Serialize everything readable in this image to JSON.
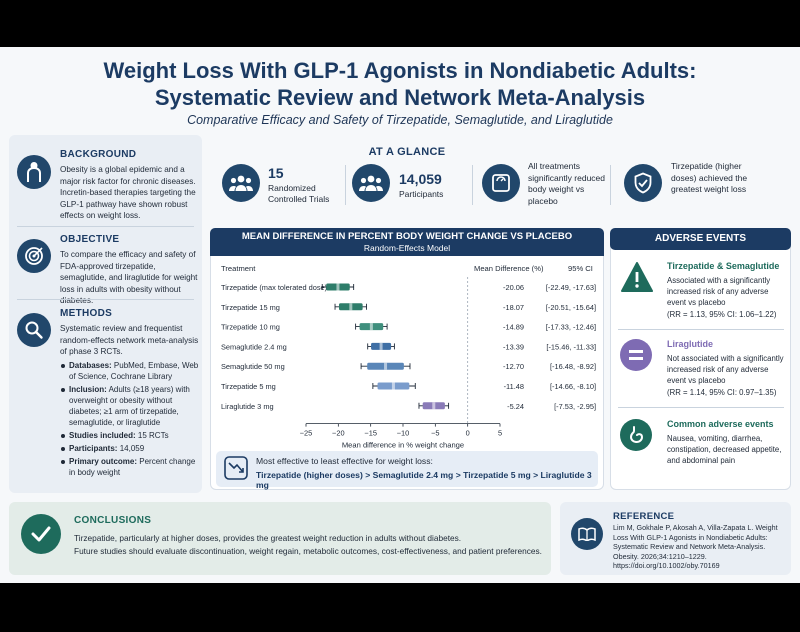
{
  "header": {
    "title_line1": "Weight Loss With GLP-1 Agonists in Nondiabetic Adults:",
    "title_line2": "Systematic Review and Network Meta-Analysis",
    "subtitle": "Comparative Efficacy and Safety of Tirzepatide, Semaglutide, and Liraglutide"
  },
  "background": {
    "heading": "BACKGROUND",
    "text": "Obesity is a global epidemic and a major risk factor for chronic diseases. Incretin-based therapies targeting the GLP-1 pathway have shown robust effects on weight loss."
  },
  "objective": {
    "heading": "OBJECTIVE",
    "text": "To compare the efficacy and safety of FDA-approved tirzepatide, semaglutide, and liraglutide for weight loss in adults with obesity without diabetes."
  },
  "methods": {
    "heading": "METHODS",
    "text": "Systematic review and frequentist random-effects network meta-analysis of phase 3 RCTs.",
    "bullets": [
      {
        "label": "Databases:",
        "text": " PubMed, Embase, Web of Science, Cochrane Library"
      },
      {
        "label": "Inclusion:",
        "text": " Adults (≥18 years) with overweight or obesity without diabetes; ≥1 arm of tirzepatide, semaglutide, or liraglutide"
      },
      {
        "label": "Studies included:",
        "text": " 15 RCTs"
      },
      {
        "label": "Participants:",
        "text": " 14,059"
      },
      {
        "label": "Primary outcome:",
        "text": " Percent change in body weight"
      }
    ]
  },
  "glance": {
    "heading": "AT A GLANCE",
    "items": [
      {
        "value": "15",
        "label": "Randomized Controlled Trials"
      },
      {
        "value": "14,059",
        "label": "Participants"
      },
      {
        "value": "",
        "label": "All treatments significantly reduced body weight vs placebo"
      },
      {
        "value": "",
        "label": "Tirzepatide (higher doses) achieved the greatest weight loss"
      }
    ]
  },
  "forest": {
    "heading": "MEAN DIFFERENCE IN PERCENT BODY WEIGHT CHANGE VS PLACEBO",
    "subheading": "Random-Effects Model",
    "col_treatment": "Treatment",
    "col_md": "Mean Difference (%)",
    "col_ci": "95% CI",
    "summary_label": "Most effective to least effective for weight loss:",
    "summary_order": "Tirzepatide (higher doses) > Semaglutide 2.4 mg > Tirzepatide 5 mg > Liraglutide 3 mg"
  },
  "chart_data": {
    "type": "forest",
    "xlabel": "Mean difference in % weight change",
    "xlim": [
      -25,
      5
    ],
    "ticks": [
      -25,
      -20,
      -15,
      -10,
      -5,
      0,
      5
    ],
    "rows": [
      {
        "treatment": "Tirzepatide (max tolerated dose)",
        "md": -20.06,
        "lo": -22.49,
        "hi": -17.63,
        "md_text": "-20.06",
        "ci_text": "[-22.49, -17.63]",
        "color": "#2e7d6a"
      },
      {
        "treatment": "Tirzepatide 15 mg",
        "md": -18.07,
        "lo": -20.51,
        "hi": -15.64,
        "md_text": "-18.07",
        "ci_text": "[-20.51, -15.64]",
        "color": "#2e7d6a"
      },
      {
        "treatment": "Tirzepatide 10 mg",
        "md": -14.89,
        "lo": -17.33,
        "hi": -12.46,
        "md_text": "-14.89",
        "ci_text": "[-17.33, -12.46]",
        "color": "#3f8f7d"
      },
      {
        "treatment": "Semaglutide 2.4 mg",
        "md": -13.39,
        "lo": -15.46,
        "hi": -11.33,
        "md_text": "-13.39",
        "ci_text": "[-15.46, -11.33]",
        "color": "#3f6fa5"
      },
      {
        "treatment": "Semaglutide 50 mg",
        "md": -12.7,
        "lo": -16.48,
        "hi": -8.92,
        "md_text": "-12.70",
        "ci_text": "[-16.48, -8.92]",
        "color": "#5a86b8"
      },
      {
        "treatment": "Tirzepatide 5 mg",
        "md": -11.48,
        "lo": -14.66,
        "hi": -8.1,
        "md_text": "-11.48",
        "ci_text": "[-14.66, -8.10]",
        "color": "#7a9ccc"
      },
      {
        "treatment": "Liraglutide 3 mg",
        "md": -5.24,
        "lo": -7.53,
        "hi": -2.95,
        "md_text": "-5.24",
        "ci_text": "[-7.53, -2.95]",
        "color": "#8a7bb8"
      }
    ]
  },
  "adverse": {
    "heading": "ADVERSE EVENTS",
    "items": [
      {
        "title": "Tirzepatide & Semaglutide",
        "text": "Associated with a significantly increased risk of any adverse event vs placebo",
        "stat": "(RR = 1.13, 95% CI: 1.06–1.22)",
        "color": "#1e6b5c"
      },
      {
        "title": "Liraglutide",
        "text": "Not associated with a significantly increased risk of any adverse event vs placebo",
        "stat": "(RR = 1.14, 95% CI: 0.97–1.35)",
        "color": "#7e6bb3"
      },
      {
        "title": "Common adverse events",
        "text": "Nausea, vomiting, diarrhea, constipation, decreased appetite, and abdominal pain",
        "stat": "",
        "color": "#1e6b5c"
      }
    ]
  },
  "conclusions": {
    "heading": "CONCLUSIONS",
    "line1": "Tirzepatide, particularly at higher doses, provides the greatest weight reduction in adults without diabetes.",
    "line2": "Future studies should evaluate discontinuation, weight regain, metabolic outcomes, cost-effectiveness, and patient preferences."
  },
  "reference": {
    "heading": "REFERENCE",
    "text": "Lim M, Gokhale P, Akosah A, Villa-Zapata L. Weight Loss With GLP-1 Agonists in Nondiabetic Adults: Systematic Review and Network Meta-Analysis. Obesity. 2026;34:1210–1229. https://doi.org/10.1002/oby.70169"
  },
  "colors": {
    "navy": "#1c3b63",
    "teal": "#1e6b5c",
    "purple": "#7e6bb3"
  }
}
